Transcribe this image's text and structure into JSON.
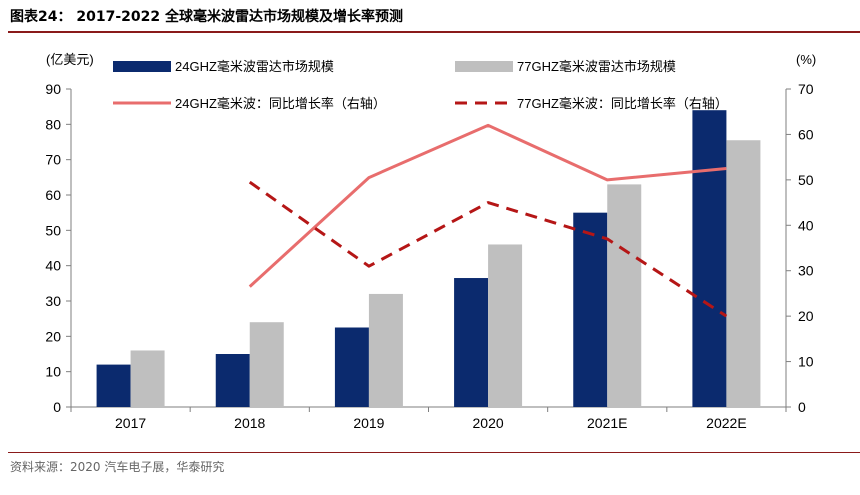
{
  "figure": {
    "title": "图表24： 2017-2022 全球毫米波雷达市场规模及增长率预测",
    "source": "资料来源：2020 汽车电子展，华泰研究"
  },
  "chart_data": {
    "type": "bar",
    "categories": [
      "2017",
      "2018",
      "2019",
      "2020",
      "2021E",
      "2022E"
    ],
    "left_axis": {
      "unit_label": "(亿美元)",
      "ylim": [
        0,
        90
      ],
      "ticks": [
        "0",
        "10",
        "20",
        "30",
        "40",
        "50",
        "60",
        "70",
        "80",
        "90"
      ]
    },
    "right_axis": {
      "unit_label": "(%)",
      "ylim": [
        0,
        70
      ],
      "ticks": [
        "0",
        "10",
        "20",
        "30",
        "40",
        "50",
        "60",
        "70"
      ]
    },
    "series": [
      {
        "name": "24GHZ毫米波雷达市场规模",
        "kind": "bar",
        "axis": "left",
        "color": "#0b2a6e",
        "values": [
          12,
          15,
          22.5,
          36.5,
          55,
          84
        ]
      },
      {
        "name": "77GHZ毫米波雷达市场规模",
        "kind": "bar",
        "axis": "left",
        "color": "#bfbfbf",
        "values": [
          16,
          24,
          32,
          46,
          63,
          75.5
        ]
      },
      {
        "name": "24GHZ毫米波：同比增长率（右轴）",
        "kind": "line",
        "axis": "right",
        "color": "#e86d6d",
        "dash": "solid",
        "values": [
          null,
          26.5,
          50.5,
          62,
          50,
          52.5
        ]
      },
      {
        "name": "77GHZ毫米波：同比增长率（右轴）",
        "kind": "line",
        "axis": "right",
        "color": "#b51616",
        "dash": "dashed",
        "values": [
          null,
          49.5,
          31,
          45,
          37,
          20
        ]
      }
    ],
    "grid": false,
    "legend": "top"
  }
}
